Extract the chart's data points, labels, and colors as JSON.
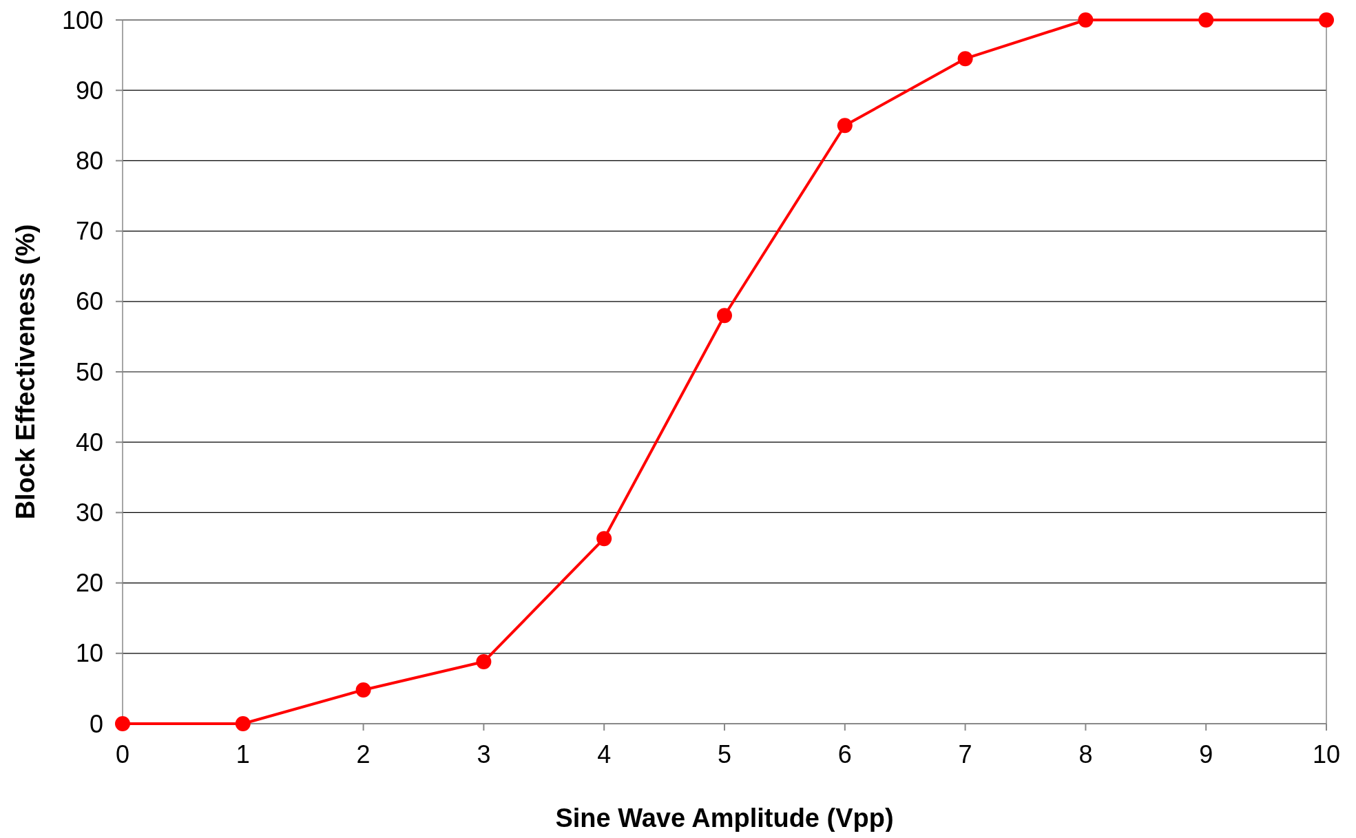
{
  "chart_data": {
    "type": "line",
    "xlabel": "Sine Wave Amplitude (Vpp)",
    "ylabel": "Block Effectiveness (%)",
    "x": [
      0,
      1,
      2,
      3,
      4,
      5,
      6,
      7,
      8,
      9,
      10
    ],
    "series": [
      {
        "color": "#ff0000",
        "values": [
          0,
          0,
          4.8,
          8.8,
          26.3,
          58,
          85,
          94.5,
          100,
          100,
          100
        ]
      }
    ],
    "xlim": [
      0,
      10
    ],
    "xticks": [
      0,
      1,
      2,
      3,
      4,
      5,
      6,
      7,
      8,
      9,
      10
    ],
    "ylim": [
      0,
      100
    ],
    "yticks": [
      0,
      10,
      20,
      30,
      40,
      50,
      60,
      70,
      80,
      90,
      100
    ],
    "grid": "y",
    "marker": "circle",
    "line_style": "solid"
  }
}
